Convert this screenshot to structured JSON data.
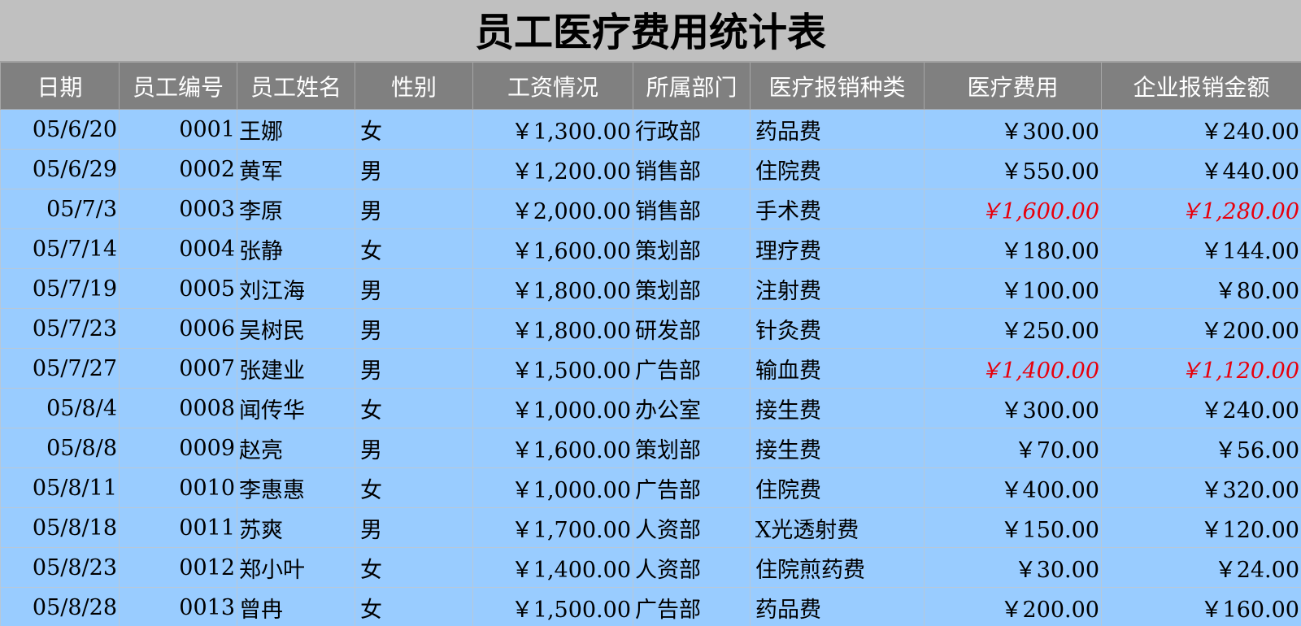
{
  "header": {
    "title": "员工医疗费用统计表"
  },
  "table": {
    "columns": [
      "日期",
      "员工编号",
      "员工姓名",
      "性别",
      "工资情况",
      "所属部门",
      "医疗报销种类",
      "医疗费用",
      "企业报销金额"
    ],
    "rows": [
      [
        "05/6/20",
        "0001",
        "王娜",
        "女",
        "￥1,300.00",
        "行政部",
        "药品费",
        "￥300.00",
        "￥240.00"
      ],
      [
        "05/6/29",
        "0002",
        "黄军",
        "男",
        "￥1,200.00",
        "销售部",
        "住院费",
        "￥550.00",
        "￥440.00"
      ],
      [
        "05/7/3",
        "0003",
        "李原",
        "男",
        "￥2,000.00",
        "销售部",
        "手术费",
        "￥1,600.00",
        "￥1,280.00"
      ],
      [
        "05/7/14",
        "0004",
        "张静",
        "女",
        "￥1,600.00",
        "策划部",
        "理疗费",
        "￥180.00",
        "￥144.00"
      ],
      [
        "05/7/19",
        "0005",
        "刘江海",
        "男",
        "￥1,800.00",
        "策划部",
        "注射费",
        "￥100.00",
        "￥80.00"
      ],
      [
        "05/7/23",
        "0006",
        "吴树民",
        "男",
        "￥1,800.00",
        "研发部",
        "针灸费",
        "￥250.00",
        "￥200.00"
      ],
      [
        "05/7/27",
        "0007",
        "张建业",
        "男",
        "￥1,500.00",
        "广告部",
        "输血费",
        "￥1,400.00",
        "￥1,120.00"
      ],
      [
        "05/8/4",
        "0008",
        "闻传华",
        "女",
        "￥1,000.00",
        "办公室",
        "接生费",
        "￥300.00",
        "￥240.00"
      ],
      [
        "05/8/8",
        "0009",
        "赵亮",
        "男",
        "￥1,600.00",
        "策划部",
        "接生费",
        "￥70.00",
        "￥56.00"
      ],
      [
        "05/8/11",
        "0010",
        "李惠惠",
        "女",
        "￥1,000.00",
        "广告部",
        "住院费",
        "￥400.00",
        "￥320.00"
      ],
      [
        "05/8/18",
        "0011",
        "苏爽",
        "男",
        "￥1,700.00",
        "人资部",
        "X光透射费",
        "￥150.00",
        "￥120.00"
      ],
      [
        "05/8/23",
        "0012",
        "郑小叶",
        "女",
        "￥1,400.00",
        "人资部",
        "住院煎药费",
        "￥30.00",
        "￥24.00"
      ],
      [
        "05/8/28",
        "0013",
        "曾冉",
        "女",
        "￥1,500.00",
        "广告部",
        "药品费",
        "￥200.00",
        "￥160.00"
      ]
    ]
  }
}
